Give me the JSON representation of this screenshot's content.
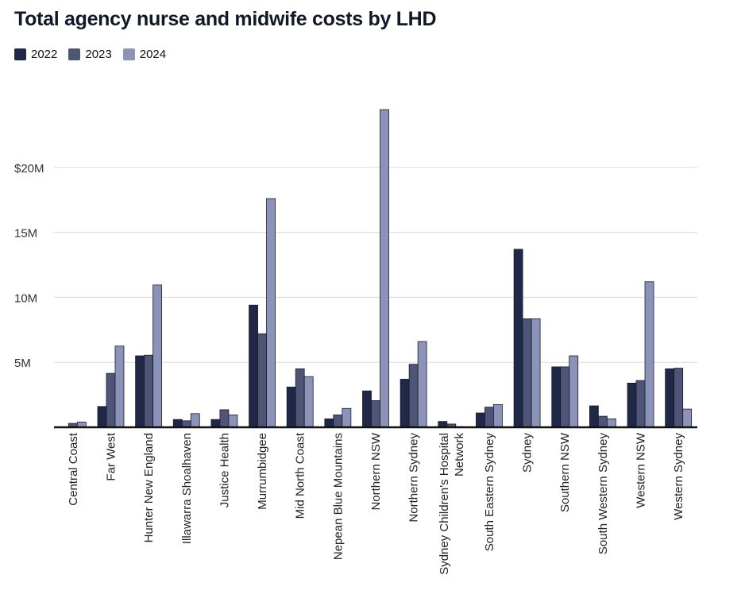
{
  "chart_data": {
    "type": "bar",
    "title": "Total agency nurse and midwife costs by LHD",
    "xlabel": "",
    "ylabel": "",
    "ylim": [
      0,
      25000000
    ],
    "ytick_values": [
      5000000,
      10000000,
      15000000,
      20000000
    ],
    "ytick_labels": [
      "5M",
      "10M",
      "15M",
      "$20M"
    ],
    "grid": true,
    "legend_position": "top-left",
    "categories": [
      "Central Coast",
      "Far West",
      "Hunter New England",
      "Illawarra Shoalhaven",
      "Justice Health",
      "Murrumbidgee",
      "Mid North Coast",
      "Nepean Blue Mountains",
      "Northern NSW",
      "Northern Sydney",
      "Sydney Children's Hospital\nNetwork",
      "South Eastern Sydney",
      "Sydney",
      "Southern NSW",
      "South Western Sydney",
      "Western NSW",
      "Western Sydney"
    ],
    "series": [
      {
        "name": "2022",
        "color": "#1f2847",
        "values": [
          0,
          1600000,
          5500000,
          600000,
          600000,
          9400000,
          3100000,
          650000,
          2800000,
          3700000,
          450000,
          1100000,
          13700000,
          4650000,
          1650000,
          3400000,
          4500000
        ]
      },
      {
        "name": "2023",
        "color": "#4e5577",
        "values": [
          300000,
          4150000,
          5550000,
          500000,
          1350000,
          7200000,
          4500000,
          950000,
          2050000,
          4850000,
          250000,
          1550000,
          8350000,
          4650000,
          850000,
          3600000,
          4550000
        ]
      },
      {
        "name": "2024",
        "color": "#8c93b8",
        "values": [
          400000,
          6250000,
          10950000,
          1050000,
          950000,
          17600000,
          3900000,
          1450000,
          24450000,
          6600000,
          50000,
          1750000,
          8350000,
          5500000,
          650000,
          11200000,
          1400000
        ]
      }
    ]
  }
}
